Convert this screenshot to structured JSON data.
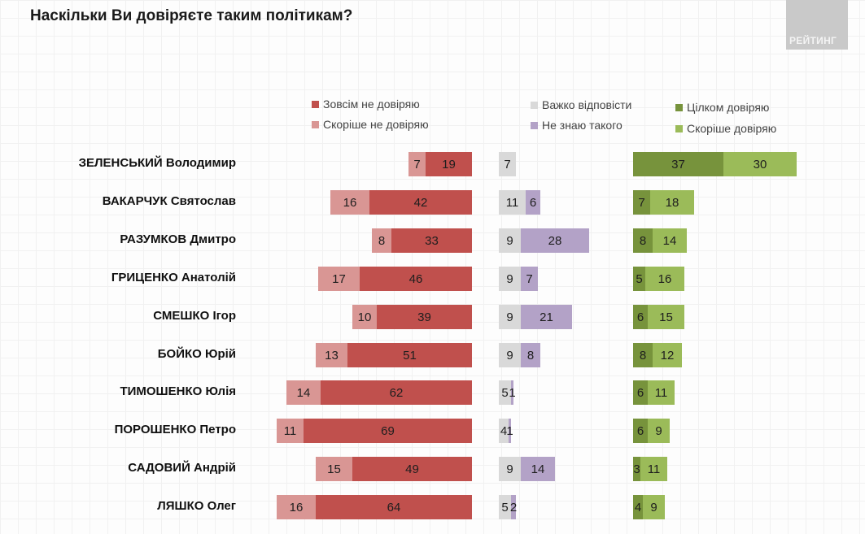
{
  "header": {
    "title": "Наскільки Ви довіряєте таким політикам?",
    "logo_text": "РЕЙТИНГ"
  },
  "colors": {
    "distrust_full": "#c0504d",
    "distrust_rather": "#d99694",
    "hard_to_say": "#d9d9d9",
    "dont_know": "#b3a2c7",
    "trust_full": "#77933c",
    "trust_rather": "#9bbb59"
  },
  "chart_data": {
    "type": "bar",
    "subtype": "diverging-stacked-horizontal",
    "title": "Наскільки Ви довіряєте таким політикам?",
    "xlabel": "",
    "ylabel": "",
    "unit": "%",
    "grid": false,
    "legend_position": "top",
    "legend": [
      {
        "key": "distrust_full",
        "label": "Зовсім не довіряю"
      },
      {
        "key": "distrust_rather",
        "label": "Скоріше не довіряю"
      },
      {
        "key": "hard_to_say",
        "label": "Важко відповісти"
      },
      {
        "key": "dont_know",
        "label": "Не знаю такого"
      },
      {
        "key": "trust_full",
        "label": "Цілком довіряю"
      },
      {
        "key": "trust_rather",
        "label": "Скоріше довіряю"
      }
    ],
    "categories": [
      "ЗЕЛЕНСЬКИЙ Володимир",
      "ВАКАРЧУК Святослав",
      "РАЗУМКОВ Дмитро",
      "ГРИЦЕНКО Анатолій",
      "СМЕШКО Ігор",
      "БОЙКО Юрій",
      "ТИМОШЕНКО Юлія",
      "ПОРОШЕНКО Петро",
      "САДОВИЙ Андрій",
      "ЛЯШКО Олег"
    ],
    "series": [
      {
        "name": "Зовсім не довіряю",
        "key": "distrust_full",
        "values": [
          19,
          42,
          33,
          46,
          39,
          51,
          62,
          69,
          49,
          64
        ]
      },
      {
        "name": "Скоріше не довіряю",
        "key": "distrust_rather",
        "values": [
          7,
          16,
          8,
          17,
          10,
          13,
          14,
          11,
          15,
          16
        ]
      },
      {
        "name": "Важко відповісти",
        "key": "hard_to_say",
        "values": [
          7,
          11,
          9,
          9,
          9,
          9,
          5,
          4,
          9,
          5
        ]
      },
      {
        "name": "Не знаю такого",
        "key": "dont_know",
        "values": [
          0,
          6,
          28,
          7,
          21,
          8,
          1,
          1,
          14,
          2
        ]
      },
      {
        "name": "Цілком довіряю",
        "key": "trust_full",
        "values": [
          37,
          7,
          8,
          5,
          6,
          8,
          6,
          6,
          3,
          4
        ]
      },
      {
        "name": "Скоріше довіряю",
        "key": "trust_rather",
        "values": [
          30,
          18,
          14,
          16,
          15,
          12,
          11,
          9,
          11,
          9
        ]
      }
    ]
  }
}
